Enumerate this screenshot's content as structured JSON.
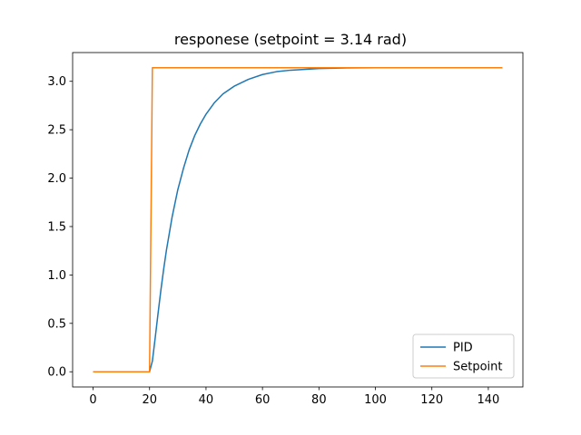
{
  "chart_data": {
    "type": "line",
    "title": "responese (setpoint = 3.14 rad)",
    "xlabel": "",
    "ylabel": "",
    "xlim": [
      -7.25,
      152.25
    ],
    "ylim": [
      -0.157,
      3.297
    ],
    "xticks": [
      0,
      20,
      40,
      60,
      80,
      100,
      120,
      140
    ],
    "xtick_labels": [
      "0",
      "20",
      "40",
      "60",
      "80",
      "100",
      "120",
      "140"
    ],
    "yticks": [
      0.0,
      0.5,
      1.0,
      1.5,
      2.0,
      2.5,
      3.0
    ],
    "ytick_labels": [
      "0.0",
      "0.5",
      "1.0",
      "1.5",
      "2.0",
      "2.5",
      "3.0"
    ],
    "grid": false,
    "legend_position": "lower right",
    "series": [
      {
        "name": "PID",
        "color": "#1f77b4",
        "x": [
          0,
          20,
          21,
          22,
          23,
          24,
          25,
          26,
          28,
          30,
          32,
          34,
          36,
          38,
          40,
          43,
          46,
          50,
          55,
          60,
          65,
          70,
          80,
          90,
          100,
          110,
          125
        ],
        "y": [
          0,
          0,
          0.11,
          0.35,
          0.6,
          0.84,
          1.06,
          1.26,
          1.6,
          1.88,
          2.1,
          2.29,
          2.44,
          2.56,
          2.66,
          2.78,
          2.87,
          2.95,
          3.02,
          3.07,
          3.1,
          3.115,
          3.132,
          3.138,
          3.14,
          3.14,
          3.14
        ]
      },
      {
        "name": "Setpoint",
        "color": "#ff7f0e",
        "x": [
          0,
          20,
          21,
          145
        ],
        "y": [
          0,
          0,
          3.14,
          3.14
        ]
      }
    ]
  }
}
